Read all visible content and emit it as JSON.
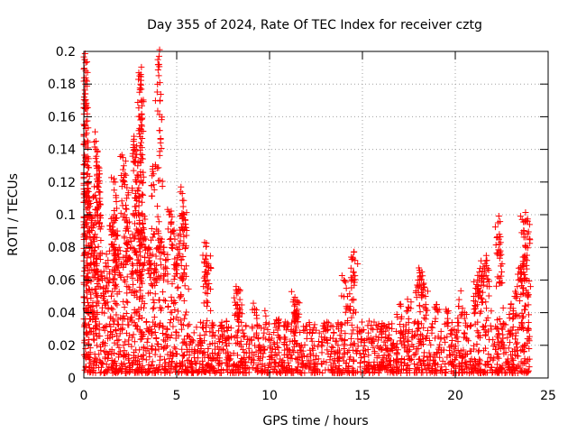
{
  "chart_data": {
    "type": "scatter",
    "title": "Day 355 of 2024, Rate Of TEC Index for receiver cztg",
    "xlabel": "GPS time / hours",
    "ylabel": "ROTI / TECUs",
    "xlim": [
      0,
      25
    ],
    "ylim": [
      0,
      0.2
    ],
    "x_ticks": [
      0,
      5,
      10,
      15,
      20,
      25
    ],
    "x_tick_labels": [
      "0",
      "5",
      "10",
      "15",
      "20",
      "25"
    ],
    "y_ticks": [
      0,
      0.02,
      0.04,
      0.06,
      0.08,
      0.1,
      0.12,
      0.14,
      0.16,
      0.18,
      0.2
    ],
    "y_tick_labels": [
      "0",
      "0.02",
      "0.04",
      "0.06",
      "0.08",
      "0.1",
      "0.12",
      "0.14",
      "0.16",
      "0.18",
      "0.2"
    ],
    "grid": true,
    "marker": "+",
    "marker_color": "#ff0000",
    "series": [
      {
        "name": "ROTI",
        "points": [
          [
            0.05,
            0.195
          ],
          [
            0.1,
            0.193
          ],
          [
            0.08,
            0.18
          ],
          [
            0.02,
            0.172
          ],
          [
            0.1,
            0.168
          ],
          [
            0.12,
            0.165
          ],
          [
            0.05,
            0.155
          ],
          [
            0.15,
            0.15
          ],
          [
            0.1,
            0.142
          ],
          [
            0.18,
            0.13
          ],
          [
            0.2,
            0.125
          ],
          [
            0.25,
            0.12
          ],
          [
            0.3,
            0.11
          ],
          [
            0.2,
            0.105
          ],
          [
            0.35,
            0.1
          ],
          [
            0.4,
            0.095
          ],
          [
            0.3,
            0.09
          ],
          [
            0.5,
            0.085
          ],
          [
            0.45,
            0.08
          ],
          [
            0.55,
            0.075
          ],
          [
            0.6,
            0.07
          ],
          [
            0.7,
            0.065
          ],
          [
            0.8,
            0.105
          ],
          [
            0.75,
            0.1
          ],
          [
            0.9,
            0.098
          ],
          [
            1.0,
            0.06
          ],
          [
            0.65,
            0.11
          ],
          [
            0.85,
            0.125
          ],
          [
            0.7,
            0.13
          ],
          [
            0.65,
            0.14
          ],
          [
            0.65,
            0.145
          ],
          [
            0.75,
            0.12
          ],
          [
            1.2,
            0.068
          ],
          [
            1.3,
            0.072
          ],
          [
            1.1,
            0.05
          ],
          [
            1.4,
            0.06
          ],
          [
            1.5,
            0.09
          ],
          [
            1.6,
            0.088
          ],
          [
            1.7,
            0.085
          ],
          [
            1.8,
            0.09
          ],
          [
            1.9,
            0.08
          ],
          [
            1.55,
            0.095
          ],
          [
            1.65,
            0.1
          ],
          [
            1.75,
            0.108
          ],
          [
            1.6,
            0.12
          ],
          [
            2.0,
            0.07
          ],
          [
            1.7,
            0.075
          ],
          [
            2.1,
            0.135
          ],
          [
            2.2,
            0.125
          ],
          [
            2.15,
            0.13
          ],
          [
            2.3,
            0.11
          ],
          [
            2.2,
            0.1
          ],
          [
            2.4,
            0.09
          ],
          [
            2.5,
            0.08
          ],
          [
            2.6,
            0.07
          ],
          [
            2.35,
            0.095
          ],
          [
            2.7,
            0.148
          ],
          [
            2.75,
            0.14
          ],
          [
            2.8,
            0.135
          ],
          [
            2.9,
            0.13
          ],
          [
            2.85,
            0.12
          ],
          [
            2.9,
            0.115
          ],
          [
            2.75,
            0.105
          ],
          [
            3.0,
            0.095
          ],
          [
            3.1,
            0.09
          ],
          [
            2.95,
            0.085
          ],
          [
            3.0,
            0.185
          ],
          [
            3.05,
            0.18
          ],
          [
            3.0,
            0.175
          ],
          [
            3.1,
            0.17
          ],
          [
            3.05,
            0.158
          ],
          [
            3.1,
            0.155
          ],
          [
            3.15,
            0.1
          ],
          [
            3.2,
            0.092
          ],
          [
            3.25,
            0.085
          ],
          [
            3.5,
            0.08
          ],
          [
            3.6,
            0.075
          ],
          [
            3.7,
            0.128
          ],
          [
            3.75,
            0.125
          ],
          [
            3.8,
            0.07
          ],
          [
            3.9,
            0.065
          ],
          [
            4.05,
            0.197
          ],
          [
            4.0,
            0.192
          ],
          [
            4.1,
            0.17
          ],
          [
            4.0,
            0.09
          ],
          [
            4.2,
            0.085
          ],
          [
            4.3,
            0.08
          ],
          [
            4.4,
            0.072
          ],
          [
            4.6,
            0.1
          ],
          [
            4.7,
            0.095
          ],
          [
            4.8,
            0.09
          ],
          [
            4.9,
            0.085
          ],
          [
            5.0,
            0.08
          ],
          [
            5.1,
            0.075
          ],
          [
            5.3,
            0.113
          ],
          [
            5.4,
            0.1
          ],
          [
            5.5,
            0.092
          ],
          [
            5.2,
            0.088
          ],
          [
            5.35,
            0.105
          ],
          [
            5.45,
            0.097
          ],
          [
            6.5,
            0.083
          ],
          [
            6.6,
            0.075
          ],
          [
            6.7,
            0.07
          ],
          [
            6.55,
            0.065
          ],
          [
            6.65,
            0.06
          ],
          [
            8.2,
            0.056
          ],
          [
            8.3,
            0.052
          ],
          [
            8.4,
            0.048
          ],
          [
            8.25,
            0.045
          ],
          [
            9.2,
            0.04
          ],
          [
            9.8,
            0.038
          ],
          [
            10.5,
            0.036
          ],
          [
            11.3,
            0.048
          ],
          [
            11.4,
            0.045
          ],
          [
            11.5,
            0.042
          ],
          [
            11.35,
            0.04
          ],
          [
            14.4,
            0.074
          ],
          [
            14.5,
            0.073
          ],
          [
            14.6,
            0.072
          ],
          [
            14.0,
            0.06
          ],
          [
            14.2,
            0.05
          ],
          [
            17.0,
            0.045
          ],
          [
            17.5,
            0.043
          ],
          [
            18.0,
            0.06
          ],
          [
            18.1,
            0.062
          ],
          [
            18.2,
            0.065
          ],
          [
            18.3,
            0.058
          ],
          [
            18.4,
            0.05
          ],
          [
            19.0,
            0.045
          ],
          [
            19.5,
            0.042
          ],
          [
            20.2,
            0.048
          ],
          [
            20.5,
            0.04
          ],
          [
            21.0,
            0.05
          ],
          [
            21.1,
            0.055
          ],
          [
            21.2,
            0.06
          ],
          [
            21.3,
            0.065
          ],
          [
            21.4,
            0.062
          ],
          [
            21.5,
            0.068
          ],
          [
            21.6,
            0.07
          ],
          [
            21.7,
            0.072
          ],
          [
            21.8,
            0.066
          ],
          [
            22.3,
            0.095
          ],
          [
            22.35,
            0.085
          ],
          [
            22.4,
            0.075
          ],
          [
            22.5,
            0.065
          ],
          [
            23.0,
            0.045
          ],
          [
            23.2,
            0.05
          ],
          [
            23.4,
            0.06
          ],
          [
            23.5,
            0.065
          ],
          [
            23.6,
            0.097
          ],
          [
            23.7,
            0.09
          ],
          [
            23.8,
            0.08
          ],
          [
            23.9,
            0.096
          ],
          [
            24.0,
            0.094
          ],
          [
            23.65,
            0.07
          ],
          [
            23.75,
            0.075
          ],
          [
            23.85,
            0.06
          ]
        ],
        "band": {
          "x_min": 0.0,
          "x_max": 24.0,
          "y_low": 0.003,
          "y_high": 0.035,
          "count": 1900,
          "note": "dense cloud of low ROTI values spanning the day"
        }
      }
    ]
  }
}
